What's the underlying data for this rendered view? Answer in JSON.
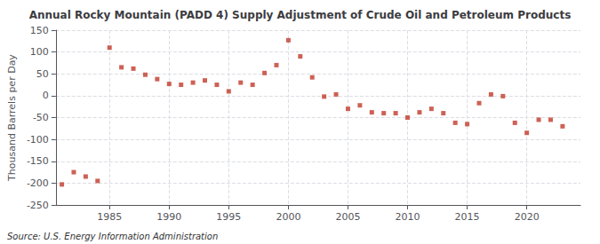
{
  "chart_data": {
    "type": "scatter",
    "title": "Annual Rocky Mountain (PADD 4) Supply Adjustment of Crude Oil and Petroleum Products",
    "ylabel": "Thousand Barrels per Day",
    "annotation": "Source: U.S. Energy Information Administration",
    "x": [
      1981,
      1982,
      1983,
      1984,
      1985,
      1986,
      1987,
      1988,
      1989,
      1990,
      1991,
      1992,
      1993,
      1994,
      1995,
      1996,
      1997,
      1998,
      1999,
      2000,
      2001,
      2002,
      2003,
      2004,
      2005,
      2006,
      2007,
      2008,
      2009,
      2010,
      2011,
      2012,
      2013,
      2014,
      2015,
      2016,
      2017,
      2018,
      2019,
      2020,
      2021,
      2022,
      2023
    ],
    "values": [
      -203,
      -175,
      -185,
      -195,
      110,
      65,
      62,
      48,
      38,
      27,
      25,
      30,
      35,
      25,
      10,
      30,
      25,
      52,
      70,
      127,
      90,
      42,
      -2,
      3,
      -30,
      -22,
      -38,
      -40,
      -40,
      -50,
      -38,
      -30,
      -40,
      -62,
      -65,
      -17,
      3,
      -1,
      -62,
      -85,
      -55,
      -55,
      -70
    ],
    "color": "#c0392b",
    "marker": "square",
    "xlim": [
      1980.5,
      2024.5
    ],
    "xticks": [
      1985,
      1990,
      1995,
      2000,
      2005,
      2010,
      2015,
      2020
    ],
    "ylim": [
      -250,
      150
    ],
    "yticks": [
      -250,
      -200,
      -150,
      -100,
      -50,
      0,
      50,
      100,
      150
    ],
    "grid": true
  }
}
